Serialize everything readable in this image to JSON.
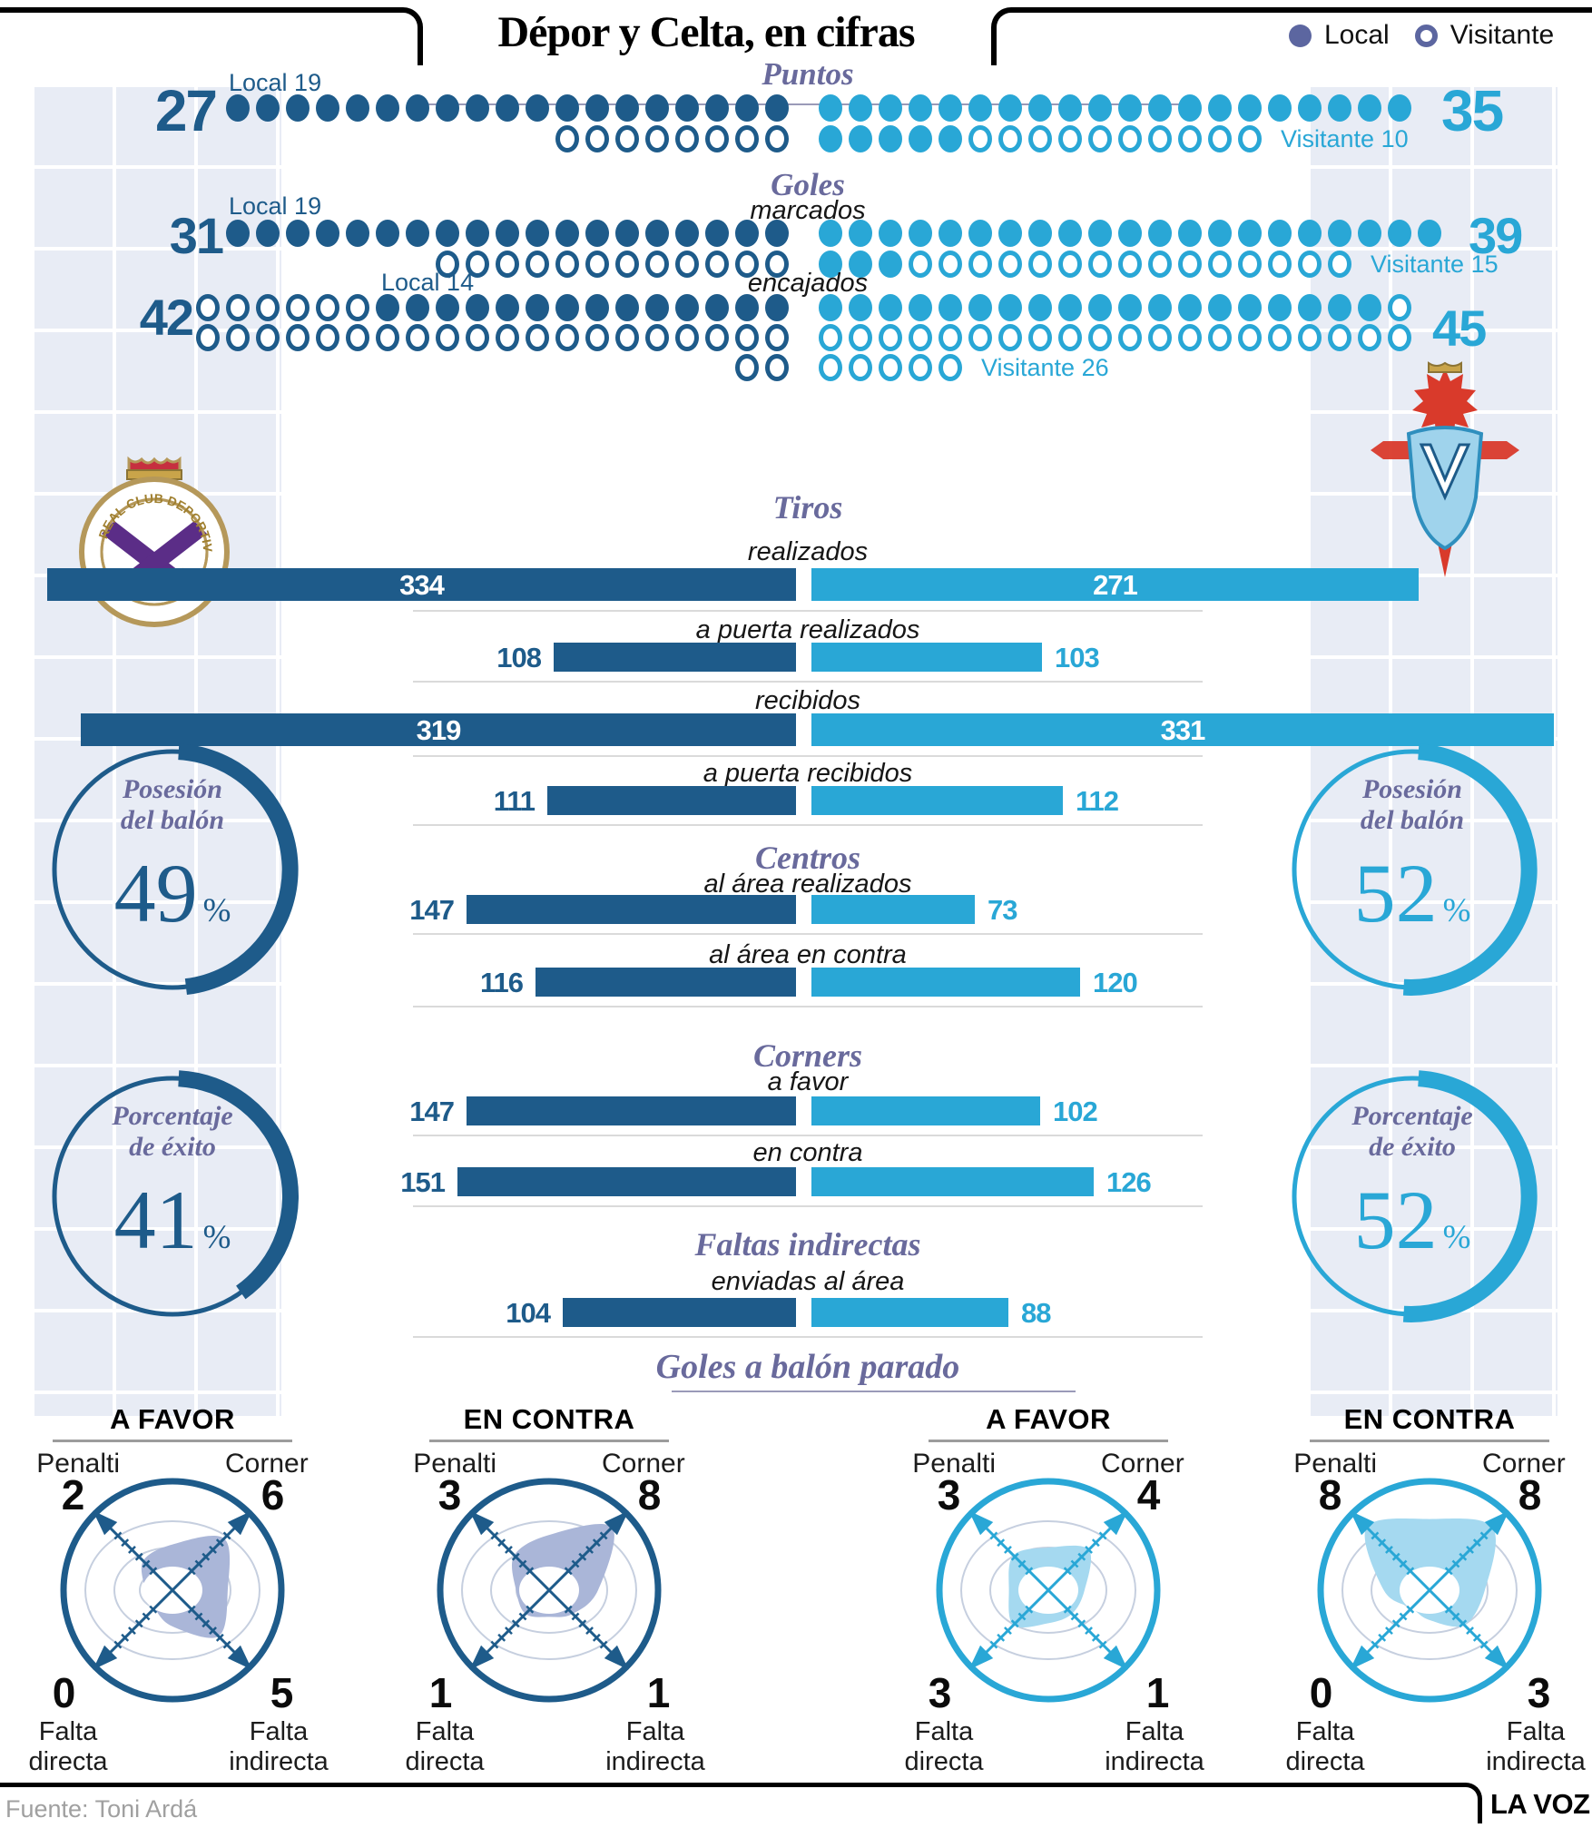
{
  "header": {
    "title": "Dépor y Celta, en cifras",
    "legend": [
      {
        "label": "Local",
        "marker": "filled-dot"
      },
      {
        "label": "Visitante",
        "marker": "outline-dot"
      }
    ]
  },
  "colors": {
    "depor": "#1e5b8a",
    "celta": "#29a7d6",
    "heading_purple": "#696a9c",
    "legend_indigo": "#5c66a0",
    "blob_depor": "#aab6d8",
    "blob_celta": "#a5d9f0",
    "radar_grid": "#c6cfdf",
    "band": "#e8ecf5",
    "separator": "#dadada"
  },
  "chart_data": [
    {
      "type": "pictogram",
      "title": "Puntos",
      "subtitle": "",
      "unit_rows": true,
      "depor": {
        "total": 27,
        "local": 19,
        "visitante": 8,
        "side_label": "Local 19",
        "rows": [
          [
            {
              "f": 19
            }
          ],
          [
            {
              "o": 8
            }
          ]
        ]
      },
      "celta": {
        "total": 35,
        "local": 25,
        "visitante": 10,
        "side_label": "Visitante 10",
        "rows": [
          [
            {
              "f": 20
            }
          ],
          [
            {
              "f": 5
            },
            {
              "o": 10
            }
          ]
        ],
        "label_row": 1
      }
    },
    {
      "type": "pictogram",
      "title": "Goles",
      "subtitle": "marcados",
      "depor": {
        "total": 31,
        "local": 19,
        "visitante": 12,
        "side_label": "Local 19",
        "rows": [
          [
            {
              "f": 19
            }
          ],
          [
            {
              "o": 12
            }
          ]
        ]
      },
      "celta": {
        "total": 39,
        "local": 24,
        "visitante": 15,
        "side_label": "Visitante 15",
        "rows": [
          [
            {
              "f": 21
            }
          ],
          [
            {
              "f": 3
            },
            {
              "o": 15
            }
          ]
        ],
        "label_row": 1
      }
    },
    {
      "type": "pictogram",
      "title": "",
      "subtitle": "encajados",
      "depor": {
        "total": 42,
        "local": 14,
        "visitante": 28,
        "side_label": "Local 14",
        "rows": [
          [
            {
              "o": 6
            },
            {
              "f": 14
            }
          ],
          [
            {
              "o": 20
            }
          ],
          [
            {
              "o": 2
            }
          ]
        ]
      },
      "celta": {
        "total": 45,
        "local": 19,
        "visitante": 26,
        "side_label": "Visitante 26",
        "rows": [
          [
            {
              "f": 19
            },
            {
              "o": 1
            }
          ],
          [
            {
              "o": 20
            }
          ],
          [
            {
              "o": 5
            }
          ]
        ],
        "label_row": 2
      }
    },
    {
      "type": "bar",
      "title": "Tiros",
      "rows": [
        {
          "label": "realizados",
          "depor": 334,
          "celta": 271
        },
        {
          "label": "a puerta realizados",
          "depor": 108,
          "celta": 103
        },
        {
          "label": "recibidos",
          "depor": 319,
          "celta": 331
        },
        {
          "label": "a puerta recibidos",
          "depor": 111,
          "celta": 112
        }
      ]
    },
    {
      "type": "bar",
      "title": "Centros",
      "rows": [
        {
          "label": "al área realizados",
          "depor": 147,
          "celta": 73
        },
        {
          "label": "al área en contra",
          "depor": 116,
          "celta": 120
        }
      ]
    },
    {
      "type": "bar",
      "title": "Corners",
      "rows": [
        {
          "label": "a favor",
          "depor": 147,
          "celta": 102
        },
        {
          "label": "en contra",
          "depor": 151,
          "celta": 126
        }
      ]
    },
    {
      "type": "bar",
      "title": "Faltas indirectas",
      "rows": [
        {
          "label": "enviadas al área",
          "depor": 104,
          "celta": 88
        }
      ]
    },
    {
      "type": "donut",
      "title": "Posesión del balón",
      "title_lines": [
        "Posesión",
        "del balón"
      ],
      "unit": "%",
      "depor_pct": 49,
      "celta_pct": 52
    },
    {
      "type": "donut",
      "title": "Porcentaje de éxito",
      "title_lines": [
        "Porcentaje",
        "de éxito"
      ],
      "unit": "%",
      "depor_pct": 41,
      "celta_pct": 52
    },
    {
      "type": "radar",
      "title": "Goles a balón parado",
      "axes": [
        "Penalti",
        "Corner",
        "Falta directa",
        "Falta indirecta"
      ],
      "max": 8,
      "charts": [
        {
          "team": "depor",
          "header": "A FAVOR",
          "penalti": 2,
          "corner": 6,
          "falta_directa": 0,
          "falta_indirecta": 5
        },
        {
          "team": "depor",
          "header": "EN CONTRA",
          "penalti": 3,
          "corner": 8,
          "falta_directa": 1,
          "falta_indirecta": 1
        },
        {
          "team": "celta",
          "header": "A FAVOR",
          "penalti": 3,
          "corner": 4,
          "falta_directa": 3,
          "falta_indirecta": 1
        },
        {
          "team": "celta",
          "header": "EN CONTRA",
          "penalti": 8,
          "corner": 8,
          "falta_directa": 0,
          "falta_indirecta": 3
        }
      ]
    }
  ],
  "footer": {
    "source": "Fuente: Toni Ardá",
    "brand": "LA VOZ"
  }
}
